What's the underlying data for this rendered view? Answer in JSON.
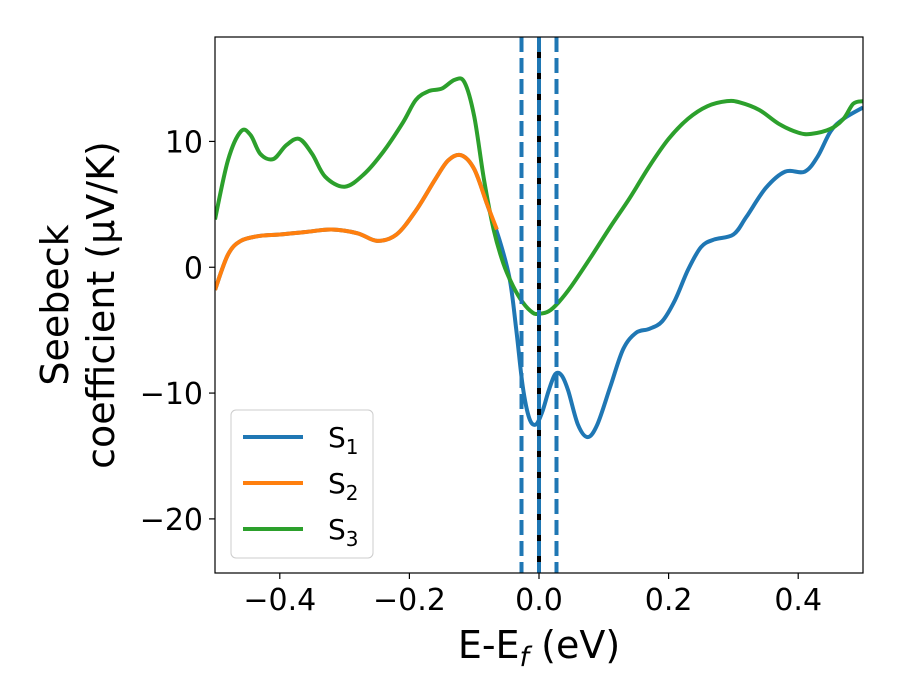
{
  "chart_data": {
    "type": "line",
    "xlabel": {
      "main": "E-E",
      "sub": "f",
      "unit": " (eV)"
    },
    "ylabel": {
      "line1": "Seebeck",
      "line2": "coefficient  (μV/K)"
    },
    "xlim": [
      -0.5,
      0.5
    ],
    "ylim": [
      -24.3,
      18.3
    ],
    "xticks": [
      {
        "value": -0.4,
        "label": "−0.4"
      },
      {
        "value": -0.2,
        "label": "−0.2"
      },
      {
        "value": 0.0,
        "label": "0.0"
      },
      {
        "value": 0.2,
        "label": "0.2"
      },
      {
        "value": 0.4,
        "label": "0.4"
      }
    ],
    "yticks": [
      {
        "value": 10,
        "label": "10"
      },
      {
        "value": 0,
        "label": "0"
      },
      {
        "value": -10,
        "label": "−10"
      },
      {
        "value": -20,
        "label": "−20"
      }
    ],
    "vlines": [
      {
        "x": -0.027,
        "style": "dashed",
        "color": "#1f77b4"
      },
      {
        "x": 0.0,
        "style": "solid",
        "color": "#000000"
      },
      {
        "x": 0.0,
        "style": "dashed",
        "color": "#1f77b4"
      },
      {
        "x": 0.027,
        "style": "dashed",
        "color": "#1f77b4"
      }
    ],
    "legend_position": "lower-left",
    "series": [
      {
        "name": "S",
        "sub": "1",
        "color": "#1f77b4",
        "points": [
          [
            -0.5,
            -1.8
          ],
          [
            -0.48,
            1.0
          ],
          [
            -0.46,
            2.1
          ],
          [
            -0.43,
            2.5
          ],
          [
            -0.4,
            2.6
          ],
          [
            -0.36,
            2.8
          ],
          [
            -0.32,
            3.0
          ],
          [
            -0.28,
            2.7
          ],
          [
            -0.25,
            2.1
          ],
          [
            -0.22,
            2.6
          ],
          [
            -0.19,
            4.5
          ],
          [
            -0.16,
            7.0
          ],
          [
            -0.14,
            8.5
          ],
          [
            -0.12,
            8.9
          ],
          [
            -0.1,
            7.8
          ],
          [
            -0.08,
            5.0
          ],
          [
            -0.06,
            2.0
          ],
          [
            -0.045,
            -1.0
          ],
          [
            -0.035,
            -5.0
          ],
          [
            -0.025,
            -9.5
          ],
          [
            -0.015,
            -12.0
          ],
          [
            -0.005,
            -12.5
          ],
          [
            0.005,
            -11.5
          ],
          [
            0.015,
            -9.8
          ],
          [
            0.025,
            -8.5
          ],
          [
            0.035,
            -8.6
          ],
          [
            0.045,
            -9.8
          ],
          [
            0.06,
            -12.5
          ],
          [
            0.075,
            -13.5
          ],
          [
            0.09,
            -12.5
          ],
          [
            0.11,
            -9.5
          ],
          [
            0.13,
            -6.5
          ],
          [
            0.15,
            -5.2
          ],
          [
            0.17,
            -4.9
          ],
          [
            0.19,
            -4.3
          ],
          [
            0.21,
            -2.6
          ],
          [
            0.23,
            -0.2
          ],
          [
            0.25,
            1.6
          ],
          [
            0.27,
            2.2
          ],
          [
            0.3,
            2.6
          ],
          [
            0.32,
            4.0
          ],
          [
            0.35,
            6.3
          ],
          [
            0.38,
            7.6
          ],
          [
            0.41,
            7.6
          ],
          [
            0.43,
            8.8
          ],
          [
            0.45,
            10.8
          ],
          [
            0.47,
            11.8
          ],
          [
            0.5,
            12.7
          ]
        ]
      },
      {
        "name": "S",
        "sub": "2",
        "color": "#ff7f0e",
        "points": [
          [
            -0.5,
            -1.8
          ],
          [
            -0.48,
            1.0
          ],
          [
            -0.46,
            2.1
          ],
          [
            -0.43,
            2.5
          ],
          [
            -0.4,
            2.6
          ],
          [
            -0.36,
            2.8
          ],
          [
            -0.32,
            3.0
          ],
          [
            -0.28,
            2.7
          ],
          [
            -0.25,
            2.1
          ],
          [
            -0.22,
            2.6
          ],
          [
            -0.19,
            4.5
          ],
          [
            -0.16,
            7.0
          ],
          [
            -0.14,
            8.5
          ],
          [
            -0.12,
            8.9
          ],
          [
            -0.1,
            7.8
          ],
          [
            -0.08,
            5.0
          ],
          [
            -0.065,
            3.0
          ]
        ]
      },
      {
        "name": "S",
        "sub": "3",
        "color": "#2ca02c",
        "points": [
          [
            -0.5,
            3.8
          ],
          [
            -0.48,
            8.5
          ],
          [
            -0.46,
            10.8
          ],
          [
            -0.445,
            10.5
          ],
          [
            -0.43,
            9.0
          ],
          [
            -0.41,
            8.6
          ],
          [
            -0.39,
            9.7
          ],
          [
            -0.37,
            10.2
          ],
          [
            -0.35,
            9.0
          ],
          [
            -0.33,
            7.2
          ],
          [
            -0.3,
            6.4
          ],
          [
            -0.27,
            7.4
          ],
          [
            -0.24,
            9.2
          ],
          [
            -0.21,
            11.5
          ],
          [
            -0.19,
            13.3
          ],
          [
            -0.17,
            14.0
          ],
          [
            -0.15,
            14.2
          ],
          [
            -0.13,
            14.9
          ],
          [
            -0.115,
            14.7
          ],
          [
            -0.1,
            12.0
          ],
          [
            -0.085,
            7.0
          ],
          [
            -0.07,
            3.0
          ],
          [
            -0.055,
            0.3
          ],
          [
            -0.04,
            -1.5
          ],
          [
            -0.025,
            -2.8
          ],
          [
            -0.01,
            -3.6
          ],
          [
            0.0,
            -3.7
          ],
          [
            0.015,
            -3.5
          ],
          [
            0.03,
            -2.8
          ],
          [
            0.05,
            -1.5
          ],
          [
            0.08,
            0.8
          ],
          [
            0.11,
            3.2
          ],
          [
            0.14,
            5.5
          ],
          [
            0.17,
            8.0
          ],
          [
            0.2,
            10.2
          ],
          [
            0.23,
            11.8
          ],
          [
            0.26,
            12.8
          ],
          [
            0.29,
            13.2
          ],
          [
            0.31,
            13.1
          ],
          [
            0.34,
            12.5
          ],
          [
            0.37,
            11.4
          ],
          [
            0.4,
            10.7
          ],
          [
            0.42,
            10.6
          ],
          [
            0.45,
            11.0
          ],
          [
            0.47,
            11.8
          ],
          [
            0.485,
            13.0
          ],
          [
            0.5,
            13.2
          ]
        ]
      }
    ]
  }
}
